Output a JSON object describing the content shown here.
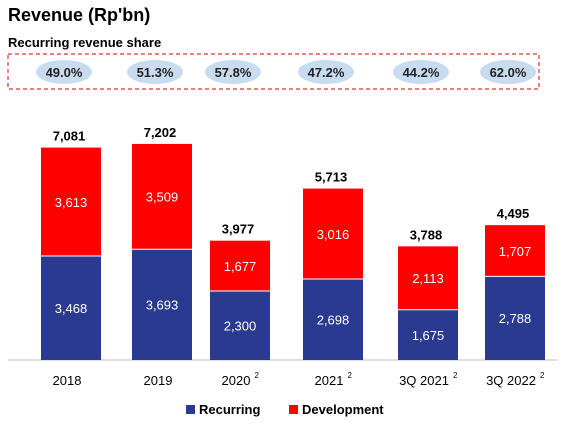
{
  "chart_data": {
    "type": "bar",
    "stacked": true,
    "title": "Revenue (Rp'bn)",
    "share_title": "Recurring revenue share",
    "share_values": [
      "49.0%",
      "51.3%",
      "57.8%",
      "47.2%",
      "44.2%",
      "62.0%"
    ],
    "categories": [
      "2018",
      "2019",
      "2020",
      "2021",
      "3Q 2021",
      "3Q 2022"
    ],
    "footnotes": [
      "",
      "",
      "2",
      "2",
      "2",
      "2"
    ],
    "series": [
      {
        "name": "Recurring",
        "values": [
          3468,
          3693,
          2300,
          2698,
          1675,
          2788
        ],
        "color": "#2b3a91"
      },
      {
        "name": "Development",
        "values": [
          3613,
          3509,
          1677,
          3016,
          2113,
          1707
        ],
        "color": "#ff0000"
      }
    ],
    "totals": [
      7081,
      7202,
      3977,
      5713,
      3788,
      4495
    ],
    "total_labels": [
      "7,081",
      "7,202",
      "3,977",
      "5,713",
      "3,788",
      "4,495"
    ],
    "recurring_labels": [
      "3,468",
      "3,693",
      "2,300",
      "2,698",
      "1,675",
      "2,788"
    ],
    "development_labels": [
      "3,613",
      "3,509",
      "1,677",
      "3,016",
      "2,113",
      "1,707"
    ],
    "ylim": [
      0,
      7800
    ],
    "grid": false,
    "legend_position": "bottom-center"
  }
}
